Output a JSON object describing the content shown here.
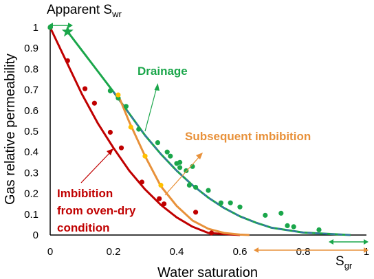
{
  "chart_data": {
    "type": "scatter",
    "xlabel": "Water saturation",
    "ylabel": "Gas relative permeability",
    "xlim": [
      0,
      1
    ],
    "ylim": [
      0,
      1
    ],
    "x_ticks": [
      "0",
      "0.2",
      "0.4",
      "0.6",
      "0.8",
      "1"
    ],
    "y_ticks": [
      "0",
      "0.1",
      "0.2",
      "0.3",
      "0.4",
      "0.5",
      "0.6",
      "0.7",
      "0.8",
      "0.9",
      "1"
    ],
    "grid": false,
    "colors": {
      "imbibition": "#c00000",
      "drainage": "#1aa64a",
      "subsequent": "#e8913a",
      "markers_subsequent": "#ffc000",
      "dashed": "#3a6fb0"
    },
    "series": [
      {
        "name": "Imbibition from oven-dry condition",
        "points": [
          [
            0.0,
            1.0
          ],
          [
            0.055,
            0.84
          ],
          [
            0.11,
            0.705
          ],
          [
            0.14,
            0.635
          ],
          [
            0.19,
            0.495
          ],
          [
            0.225,
            0.42
          ],
          [
            0.29,
            0.255
          ],
          [
            0.345,
            0.175
          ],
          [
            0.36,
            0.15
          ],
          [
            0.46,
            0.11
          ],
          [
            0.51,
            0.01
          ]
        ],
        "fit": [
          [
            0.0,
            1.0
          ],
          [
            0.05,
            0.84
          ],
          [
            0.1,
            0.68
          ],
          [
            0.15,
            0.54
          ],
          [
            0.2,
            0.42
          ],
          [
            0.25,
            0.31
          ],
          [
            0.3,
            0.22
          ],
          [
            0.35,
            0.145
          ],
          [
            0.4,
            0.085
          ],
          [
            0.45,
            0.04
          ],
          [
            0.5,
            0.01
          ],
          [
            0.6,
            0.0
          ]
        ]
      },
      {
        "name": "Drainage",
        "points": [
          [
            0.0,
            1.0
          ],
          [
            0.19,
            0.695
          ],
          [
            0.215,
            0.66
          ],
          [
            0.24,
            0.62
          ],
          [
            0.28,
            0.51
          ],
          [
            0.34,
            0.445
          ],
          [
            0.37,
            0.4
          ],
          [
            0.38,
            0.38
          ],
          [
            0.4,
            0.345
          ],
          [
            0.41,
            0.35
          ],
          [
            0.41,
            0.325
          ],
          [
            0.43,
            0.31
          ],
          [
            0.45,
            0.33
          ],
          [
            0.44,
            0.24
          ],
          [
            0.46,
            0.23
          ],
          [
            0.5,
            0.215
          ],
          [
            0.54,
            0.155
          ],
          [
            0.57,
            0.155
          ],
          [
            0.6,
            0.135
          ],
          [
            0.68,
            0.095
          ],
          [
            0.73,
            0.105
          ],
          [
            0.75,
            0.045
          ],
          [
            0.77,
            0.04
          ],
          [
            0.85,
            0.025
          ]
        ],
        "fit": [
          [
            0.055,
            0.98
          ],
          [
            0.1,
            0.89
          ],
          [
            0.15,
            0.79
          ],
          [
            0.2,
            0.69
          ],
          [
            0.25,
            0.585
          ],
          [
            0.3,
            0.48
          ],
          [
            0.35,
            0.39
          ],
          [
            0.4,
            0.31
          ],
          [
            0.45,
            0.24
          ],
          [
            0.5,
            0.18
          ],
          [
            0.55,
            0.13
          ],
          [
            0.6,
            0.09
          ],
          [
            0.65,
            0.06
          ],
          [
            0.7,
            0.035
          ],
          [
            0.8,
            0.012
          ],
          [
            0.95,
            0.0
          ]
        ]
      },
      {
        "name": "Subsequent imbibition",
        "points": [
          [
            0.215,
            0.675
          ],
          [
            0.255,
            0.52
          ],
          [
            0.3,
            0.38
          ],
          [
            0.35,
            0.24
          ]
        ],
        "fit": [
          [
            0.215,
            0.675
          ],
          [
            0.25,
            0.545
          ],
          [
            0.3,
            0.38
          ],
          [
            0.35,
            0.235
          ],
          [
            0.4,
            0.14
          ],
          [
            0.45,
            0.07
          ],
          [
            0.5,
            0.03
          ],
          [
            0.55,
            0.01
          ],
          [
            0.6,
            0.002
          ],
          [
            0.63,
            0.0
          ]
        ]
      }
    ],
    "annotations": {
      "apparent_swr": "Apparent S",
      "apparent_swr_sub": "wr",
      "sgr": "S",
      "sgr_sub": "gr",
      "drainage": "Drainage",
      "subsequent": "Subsequent imbibition",
      "imbibition_line1": "Imbibition",
      "imbibition_line2": "from oven-dry",
      "imbibition_line3": "condition"
    }
  }
}
